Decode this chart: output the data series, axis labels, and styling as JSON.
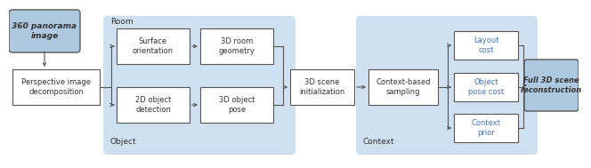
{
  "bg_color": "#ffffff",
  "light_blue_bg": "#cfe0f0",
  "box_face": "#ffffff",
  "box_edge": "#555555",
  "pano_fill": "#aec8e0",
  "pano_edge": "#555555",
  "final_fill": "#aec8e0",
  "final_edge": "#555555",
  "blue_text": "#4472c4",
  "black_text": "#333333",
  "arrow_color": "#555555",
  "room_label": "Room",
  "object_label": "Object",
  "context_label": "Context",
  "pano_text": "360 panorama\nimage",
  "decomp_text": "Perspective image\ndecomposition",
  "surf_text": "Surface\norientation",
  "room3d_text": "3D room\ngeometry",
  "obj2d_text": "2D object\ndetection",
  "obj3d_text": "3D object\npose",
  "scene_init_text": "3D scene\ninitialization",
  "context_sampling_text": "Context-based\nsampling",
  "layout_cost_text": "Layout\ncost",
  "obj_pose_cost_text": "Object\npose cost",
  "context_prior_text": "Context\nprior",
  "final_text": "Full 3D scene\nreconstruction"
}
